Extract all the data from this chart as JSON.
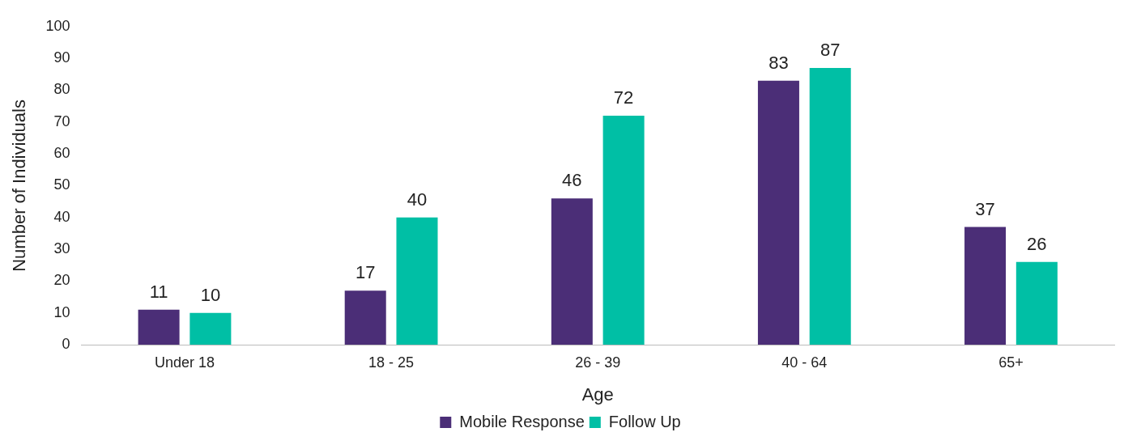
{
  "chart_data": {
    "type": "bar",
    "xlabel": "Age",
    "ylabel": "Number of Individuals",
    "categories": [
      "Under 18",
      "18 - 25",
      "26 - 39",
      "40 - 64",
      "65+"
    ],
    "series": [
      {
        "name": "Mobile Response",
        "color": "#4b2e77",
        "values": [
          11,
          17,
          46,
          83,
          37
        ]
      },
      {
        "name": "Follow Up",
        "color": "#00bfa5",
        "values": [
          10,
          40,
          72,
          87,
          26
        ]
      }
    ],
    "ylim": [
      0,
      100
    ],
    "yticks": [
      0,
      10,
      20,
      30,
      40,
      50,
      60,
      70,
      80,
      90,
      100
    ],
    "grid": false,
    "legend": "bottom",
    "data_labels": true
  }
}
